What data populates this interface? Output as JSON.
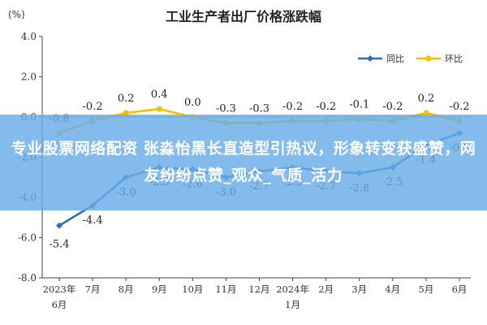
{
  "chart_data": {
    "type": "line",
    "title": "工业生产者出厂价格涨跌幅",
    "unit_label": "(%)",
    "categories": [
      "2023年\n6月",
      "7月",
      "8月",
      "9月",
      "10月",
      "11月",
      "12月",
      "2024年\n1月",
      "2月",
      "3月",
      "4月",
      "5月",
      "6月"
    ],
    "ylim": [
      -8.0,
      4.0
    ],
    "yticks": [
      "4.0",
      "2.0",
      "0.0",
      "-2.0",
      "-4.0",
      "-6.0",
      "-8.0"
    ],
    "series": [
      {
        "name": "同比",
        "color": "#2f6db8",
        "values": [
          -5.4,
          -4.4,
          -3.0,
          -2.5,
          -2.6,
          -3.0,
          -2.7,
          -2.5,
          -2.7,
          -2.8,
          -2.5,
          -1.4,
          -0.8
        ],
        "labels": [
          "-5.4",
          "-4.4",
          "-3.0",
          "-2.5",
          "-2.6",
          "-3.0",
          "-2.7",
          "-2.5",
          "-2.7",
          "-2.8",
          "-2.5",
          "-1.4",
          "-0.8"
        ]
      },
      {
        "name": "环比",
        "color": "#f2c200",
        "values": [
          -0.8,
          -0.2,
          0.2,
          0.4,
          0.0,
          -0.3,
          -0.3,
          -0.2,
          -0.2,
          -0.1,
          -0.2,
          0.2,
          -0.2
        ],
        "labels": [
          "-0.8",
          "-0.2",
          "0.2",
          "0.4",
          "0.0",
          "-0.3",
          "-0.3",
          "-0.2",
          "-0.2",
          "-0.1",
          "-0.2",
          "0.2",
          "-0.2"
        ]
      }
    ],
    "legend": "top-right",
    "grid": false
  },
  "overlay": {
    "headline": "专业股票网络配资 张淼怡黑长直造型引热议，形象转变获盛赞，网友纷纷点赞_观众_气质_活力"
  }
}
